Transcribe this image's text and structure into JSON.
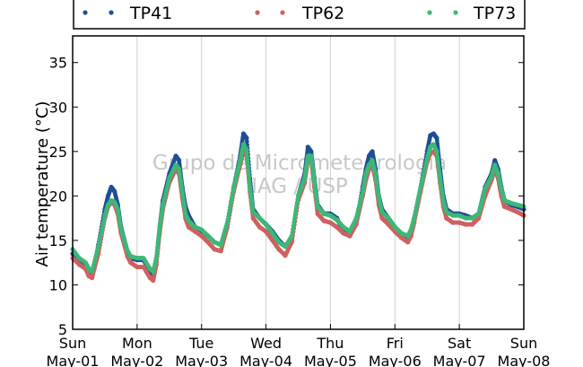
{
  "chart_data": {
    "type": "scatter",
    "title": "",
    "xlabel": "",
    "ylabel": "Air temperature (°C)",
    "ylim": [
      5,
      38
    ],
    "yticks": [
      5,
      10,
      15,
      20,
      25,
      30,
      35
    ],
    "xlim": [
      0,
      7
    ],
    "x_unit": "days",
    "xticks": [
      {
        "day": "Sun",
        "date": "May-01"
      },
      {
        "day": "Mon",
        "date": "May-02"
      },
      {
        "day": "Tue",
        "date": "May-03"
      },
      {
        "day": "Wed",
        "date": "May-04"
      },
      {
        "day": "Thu",
        "date": "May-05"
      },
      {
        "day": "Fri",
        "date": "May-06"
      },
      {
        "day": "Sat",
        "date": "May-07"
      },
      {
        "day": "Sun",
        "date": "May-08"
      }
    ],
    "grid": "vertical",
    "legend_position": "top",
    "watermark": [
      "Grupo de Micrometeorologia",
      "IAG / USP"
    ],
    "series": [
      {
        "name": "TP41",
        "color": "#1f4e96",
        "x": [
          0,
          0.1,
          0.2,
          0.25,
          0.3,
          0.4,
          0.5,
          0.55,
          0.6,
          0.65,
          0.7,
          0.75,
          0.85,
          0.9,
          1.0,
          1.1,
          1.2,
          1.25,
          1.3,
          1.35,
          1.4,
          1.5,
          1.6,
          1.65,
          1.7,
          1.75,
          1.8,
          1.9,
          2.0,
          2.1,
          2.2,
          2.3,
          2.4,
          2.5,
          2.6,
          2.65,
          2.7,
          2.75,
          2.8,
          2.9,
          3.0,
          3.1,
          3.2,
          3.3,
          3.4,
          3.5,
          3.6,
          3.65,
          3.7,
          3.75,
          3.8,
          3.9,
          4.0,
          4.1,
          4.2,
          4.3,
          4.4,
          4.5,
          4.55,
          4.6,
          4.65,
          4.7,
          4.75,
          4.8,
          4.9,
          5.0,
          5.1,
          5.2,
          5.25,
          5.3,
          5.4,
          5.5,
          5.55,
          5.6,
          5.65,
          5.7,
          5.75,
          5.8,
          5.9,
          6.0,
          6.1,
          6.2,
          6.3,
          6.4,
          6.5,
          6.55,
          6.6,
          6.65,
          6.7,
          6.8,
          6.9,
          7.0
        ],
        "y": [
          13.5,
          12.8,
          12.3,
          11.2,
          10.8,
          14.5,
          18.5,
          20.0,
          21.0,
          20.5,
          19.0,
          16.5,
          13.8,
          13.0,
          12.8,
          12.8,
          11.5,
          11.2,
          13.0,
          16.5,
          19.5,
          22.5,
          24.5,
          24.0,
          21.0,
          18.8,
          17.8,
          16.5,
          16.0,
          15.5,
          14.8,
          14.5,
          17.0,
          21.0,
          24.5,
          27.0,
          26.5,
          22.0,
          18.5,
          17.5,
          16.8,
          16.0,
          15.0,
          14.3,
          15.0,
          20.0,
          22.5,
          25.5,
          25.0,
          22.0,
          19.0,
          18.0,
          18.0,
          17.5,
          16.0,
          15.5,
          17.0,
          21.0,
          23.0,
          24.5,
          25.0,
          23.0,
          20.0,
          18.5,
          17.5,
          16.5,
          15.8,
          15.3,
          16.0,
          17.5,
          21.0,
          25.0,
          26.8,
          27.0,
          26.5,
          23.0,
          20.0,
          18.5,
          18.0,
          18.0,
          17.8,
          17.5,
          18.0,
          21.0,
          22.5,
          24.0,
          23.0,
          21.0,
          19.5,
          19.0,
          18.8,
          18.5
        ]
      },
      {
        "name": "TP62",
        "color": "#d06060",
        "x": [
          0,
          0.1,
          0.2,
          0.25,
          0.3,
          0.4,
          0.5,
          0.55,
          0.6,
          0.65,
          0.7,
          0.75,
          0.85,
          0.9,
          1.0,
          1.1,
          1.2,
          1.25,
          1.3,
          1.35,
          1.4,
          1.5,
          1.6,
          1.65,
          1.7,
          1.75,
          1.8,
          1.9,
          2.0,
          2.1,
          2.2,
          2.3,
          2.4,
          2.5,
          2.6,
          2.65,
          2.7,
          2.75,
          2.8,
          2.9,
          3.0,
          3.1,
          3.2,
          3.3,
          3.4,
          3.5,
          3.6,
          3.65,
          3.7,
          3.75,
          3.8,
          3.9,
          4.0,
          4.1,
          4.2,
          4.3,
          4.4,
          4.5,
          4.55,
          4.6,
          4.65,
          4.7,
          4.75,
          4.8,
          4.9,
          5.0,
          5.1,
          5.2,
          5.25,
          5.3,
          5.4,
          5.5,
          5.55,
          5.6,
          5.65,
          5.7,
          5.75,
          5.8,
          5.9,
          6.0,
          6.1,
          6.2,
          6.3,
          6.4,
          6.5,
          6.55,
          6.6,
          6.65,
          6.7,
          6.8,
          6.9,
          7.0
        ],
        "y": [
          13.0,
          12.3,
          11.8,
          11.0,
          10.8,
          13.5,
          17.5,
          18.8,
          19.3,
          19.0,
          18.0,
          15.8,
          13.2,
          12.5,
          12.0,
          12.0,
          10.8,
          10.5,
          12.3,
          15.8,
          18.5,
          21.5,
          23.0,
          22.5,
          19.8,
          17.5,
          16.5,
          16.0,
          15.5,
          14.8,
          14.0,
          13.8,
          16.5,
          20.5,
          23.5,
          25.0,
          24.5,
          20.5,
          17.5,
          16.5,
          16.0,
          15.0,
          14.0,
          13.3,
          14.8,
          19.5,
          21.5,
          24.0,
          24.0,
          21.0,
          18.0,
          17.2,
          17.0,
          16.5,
          15.8,
          15.5,
          16.8,
          20.0,
          21.8,
          23.0,
          23.5,
          21.8,
          19.0,
          17.5,
          16.8,
          16.0,
          15.3,
          14.8,
          15.5,
          17.0,
          20.5,
          23.8,
          24.8,
          25.0,
          24.5,
          21.5,
          18.8,
          17.5,
          17.0,
          17.0,
          16.8,
          16.8,
          17.5,
          20.0,
          21.8,
          23.0,
          22.0,
          20.0,
          18.8,
          18.5,
          18.2,
          17.8
        ]
      },
      {
        "name": "TP73",
        "color": "#3cb878",
        "x": [
          0,
          0.1,
          0.2,
          0.25,
          0.3,
          0.4,
          0.5,
          0.55,
          0.6,
          0.65,
          0.7,
          0.75,
          0.85,
          0.9,
          1.0,
          1.1,
          1.2,
          1.25,
          1.3,
          1.35,
          1.4,
          1.5,
          1.6,
          1.65,
          1.7,
          1.75,
          1.8,
          1.9,
          2.0,
          2.1,
          2.2,
          2.3,
          2.4,
          2.5,
          2.6,
          2.65,
          2.7,
          2.75,
          2.8,
          2.9,
          3.0,
          3.1,
          3.2,
          3.3,
          3.4,
          3.5,
          3.6,
          3.65,
          3.7,
          3.75,
          3.8,
          3.9,
          4.0,
          4.1,
          4.2,
          4.3,
          4.4,
          4.5,
          4.55,
          4.6,
          4.65,
          4.7,
          4.75,
          4.8,
          4.9,
          5.0,
          5.1,
          5.2,
          5.25,
          5.3,
          5.4,
          5.5,
          5.55,
          5.6,
          5.65,
          5.7,
          5.75,
          5.8,
          5.9,
          6.0,
          6.1,
          6.2,
          6.3,
          6.4,
          6.5,
          6.55,
          6.6,
          6.65,
          6.7,
          6.8,
          6.9,
          7.0
        ],
        "y": [
          14.0,
          13.0,
          12.5,
          11.8,
          11.5,
          14.3,
          17.8,
          19.0,
          19.5,
          19.3,
          18.5,
          16.3,
          13.8,
          13.2,
          13.0,
          13.0,
          11.8,
          11.5,
          13.0,
          16.5,
          19.0,
          22.0,
          23.5,
          23.0,
          20.5,
          18.0,
          17.2,
          16.5,
          16.2,
          15.5,
          14.8,
          14.5,
          17.0,
          21.0,
          24.0,
          25.8,
          25.2,
          21.0,
          18.2,
          17.5,
          16.8,
          15.8,
          14.8,
          14.3,
          15.5,
          20.0,
          22.0,
          24.5,
          24.5,
          21.8,
          18.8,
          18.0,
          17.8,
          17.3,
          16.5,
          16.0,
          17.5,
          20.5,
          22.5,
          23.5,
          24.0,
          22.5,
          19.8,
          18.2,
          17.5,
          16.5,
          15.8,
          15.5,
          16.2,
          17.5,
          21.0,
          24.2,
          25.5,
          25.8,
          25.0,
          22.0,
          19.5,
          18.2,
          17.8,
          17.8,
          17.5,
          17.5,
          18.0,
          20.8,
          22.2,
          23.5,
          22.5,
          20.8,
          19.5,
          19.2,
          19.0,
          18.8
        ]
      }
    ]
  }
}
